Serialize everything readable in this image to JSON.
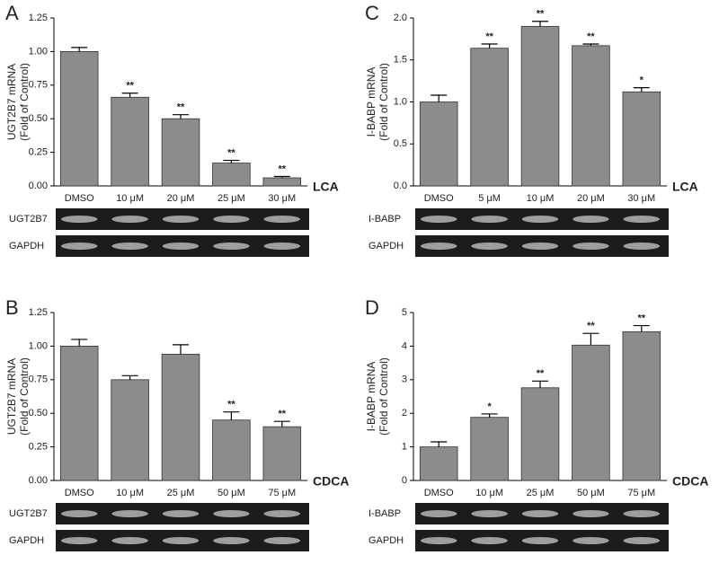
{
  "chart_data": [
    {
      "type": "bar",
      "panel": "A",
      "ylabel": [
        "UGT2B7 mRNA",
        "(Fold of Control)"
      ],
      "treatment": "LCA",
      "categories": [
        "DMSO",
        "10 μM",
        "20 μM",
        "25 μM",
        "30 μM"
      ],
      "values": [
        1.0,
        0.66,
        0.5,
        0.17,
        0.06
      ],
      "errors": [
        0.03,
        0.03,
        0.03,
        0.02,
        0.01
      ],
      "significance": [
        null,
        "**",
        "**",
        "**",
        "**"
      ],
      "color": "#8c8c8c",
      "ylim": [
        0,
        1.25
      ],
      "yticks": [
        {
          "value": 0,
          "label": "0.00"
        },
        {
          "value": 0.25,
          "label": "0.25"
        },
        {
          "value": 0.5,
          "label": "0.50"
        },
        {
          "value": 0.75,
          "label": "0.75"
        },
        {
          "value": 1,
          "label": "1.00"
        },
        {
          "value": 1.25,
          "label": "1.25"
        }
      ],
      "gel_labels": [
        "UGT2B7",
        "GAPDH"
      ]
    },
    {
      "type": "bar",
      "panel": "C",
      "ylabel": [
        "I-BABP mRNA",
        "(Fold of Control)"
      ],
      "treatment": "LCA",
      "categories": [
        "DMSO",
        "5 μM",
        "10 μM",
        "20 μM",
        "30 μM"
      ],
      "values": [
        1.0,
        1.64,
        1.9,
        1.67,
        1.12
      ],
      "errors": [
        0.08,
        0.05,
        0.06,
        0.02,
        0.05
      ],
      "significance": [
        null,
        "**",
        "**",
        "**",
        "*"
      ],
      "color": "#8c8c8c",
      "ylim": [
        0,
        2
      ],
      "yticks": [
        {
          "value": 0,
          "label": "0.0"
        },
        {
          "value": 0.5,
          "label": "0.5"
        },
        {
          "value": 1,
          "label": "1.0"
        },
        {
          "value": 1.5,
          "label": "1.5"
        },
        {
          "value": 2,
          "label": "2.0"
        }
      ],
      "gel_labels": [
        "I-BABP",
        "GAPDH"
      ]
    },
    {
      "type": "bar",
      "panel": "B",
      "ylabel": [
        "UGT2B7 mRNA",
        "(Fold of Control)"
      ],
      "treatment": "CDCA",
      "categories": [
        "DMSO",
        "10 μM",
        "25 μM",
        "50 μM",
        "75 μM"
      ],
      "values": [
        1.0,
        0.75,
        0.94,
        0.45,
        0.4
      ],
      "errors": [
        0.05,
        0.03,
        0.07,
        0.06,
        0.04
      ],
      "significance": [
        null,
        null,
        null,
        "**",
        "**"
      ],
      "color": "#8c8c8c",
      "ylim": [
        0,
        1.25
      ],
      "yticks": [
        {
          "value": 0,
          "label": "0.00"
        },
        {
          "value": 0.25,
          "label": "0.25"
        },
        {
          "value": 0.5,
          "label": "0.50"
        },
        {
          "value": 0.75,
          "label": "0.75"
        },
        {
          "value": 1,
          "label": "1.00"
        },
        {
          "value": 1.25,
          "label": "1.25"
        }
      ],
      "gel_labels": [
        "UGT2B7",
        "GAPDH"
      ]
    },
    {
      "type": "bar",
      "panel": "D",
      "ylabel": [
        "I-BABP mRNA",
        "(Fold of Control)"
      ],
      "treatment": "CDCA",
      "categories": [
        "DMSO",
        "10 μM",
        "25 μM",
        "50 μM",
        "75 μM"
      ],
      "values": [
        1.0,
        1.88,
        2.76,
        4.03,
        4.43
      ],
      "errors": [
        0.15,
        0.1,
        0.2,
        0.35,
        0.18
      ],
      "significance": [
        null,
        "*",
        "**",
        "**",
        "**"
      ],
      "color": "#8c8c8c",
      "ylim": [
        0,
        5
      ],
      "yticks": [
        0,
        1,
        2,
        3,
        4,
        5
      ],
      "gel_labels": [
        "I-BABP",
        "GAPDH"
      ]
    }
  ]
}
